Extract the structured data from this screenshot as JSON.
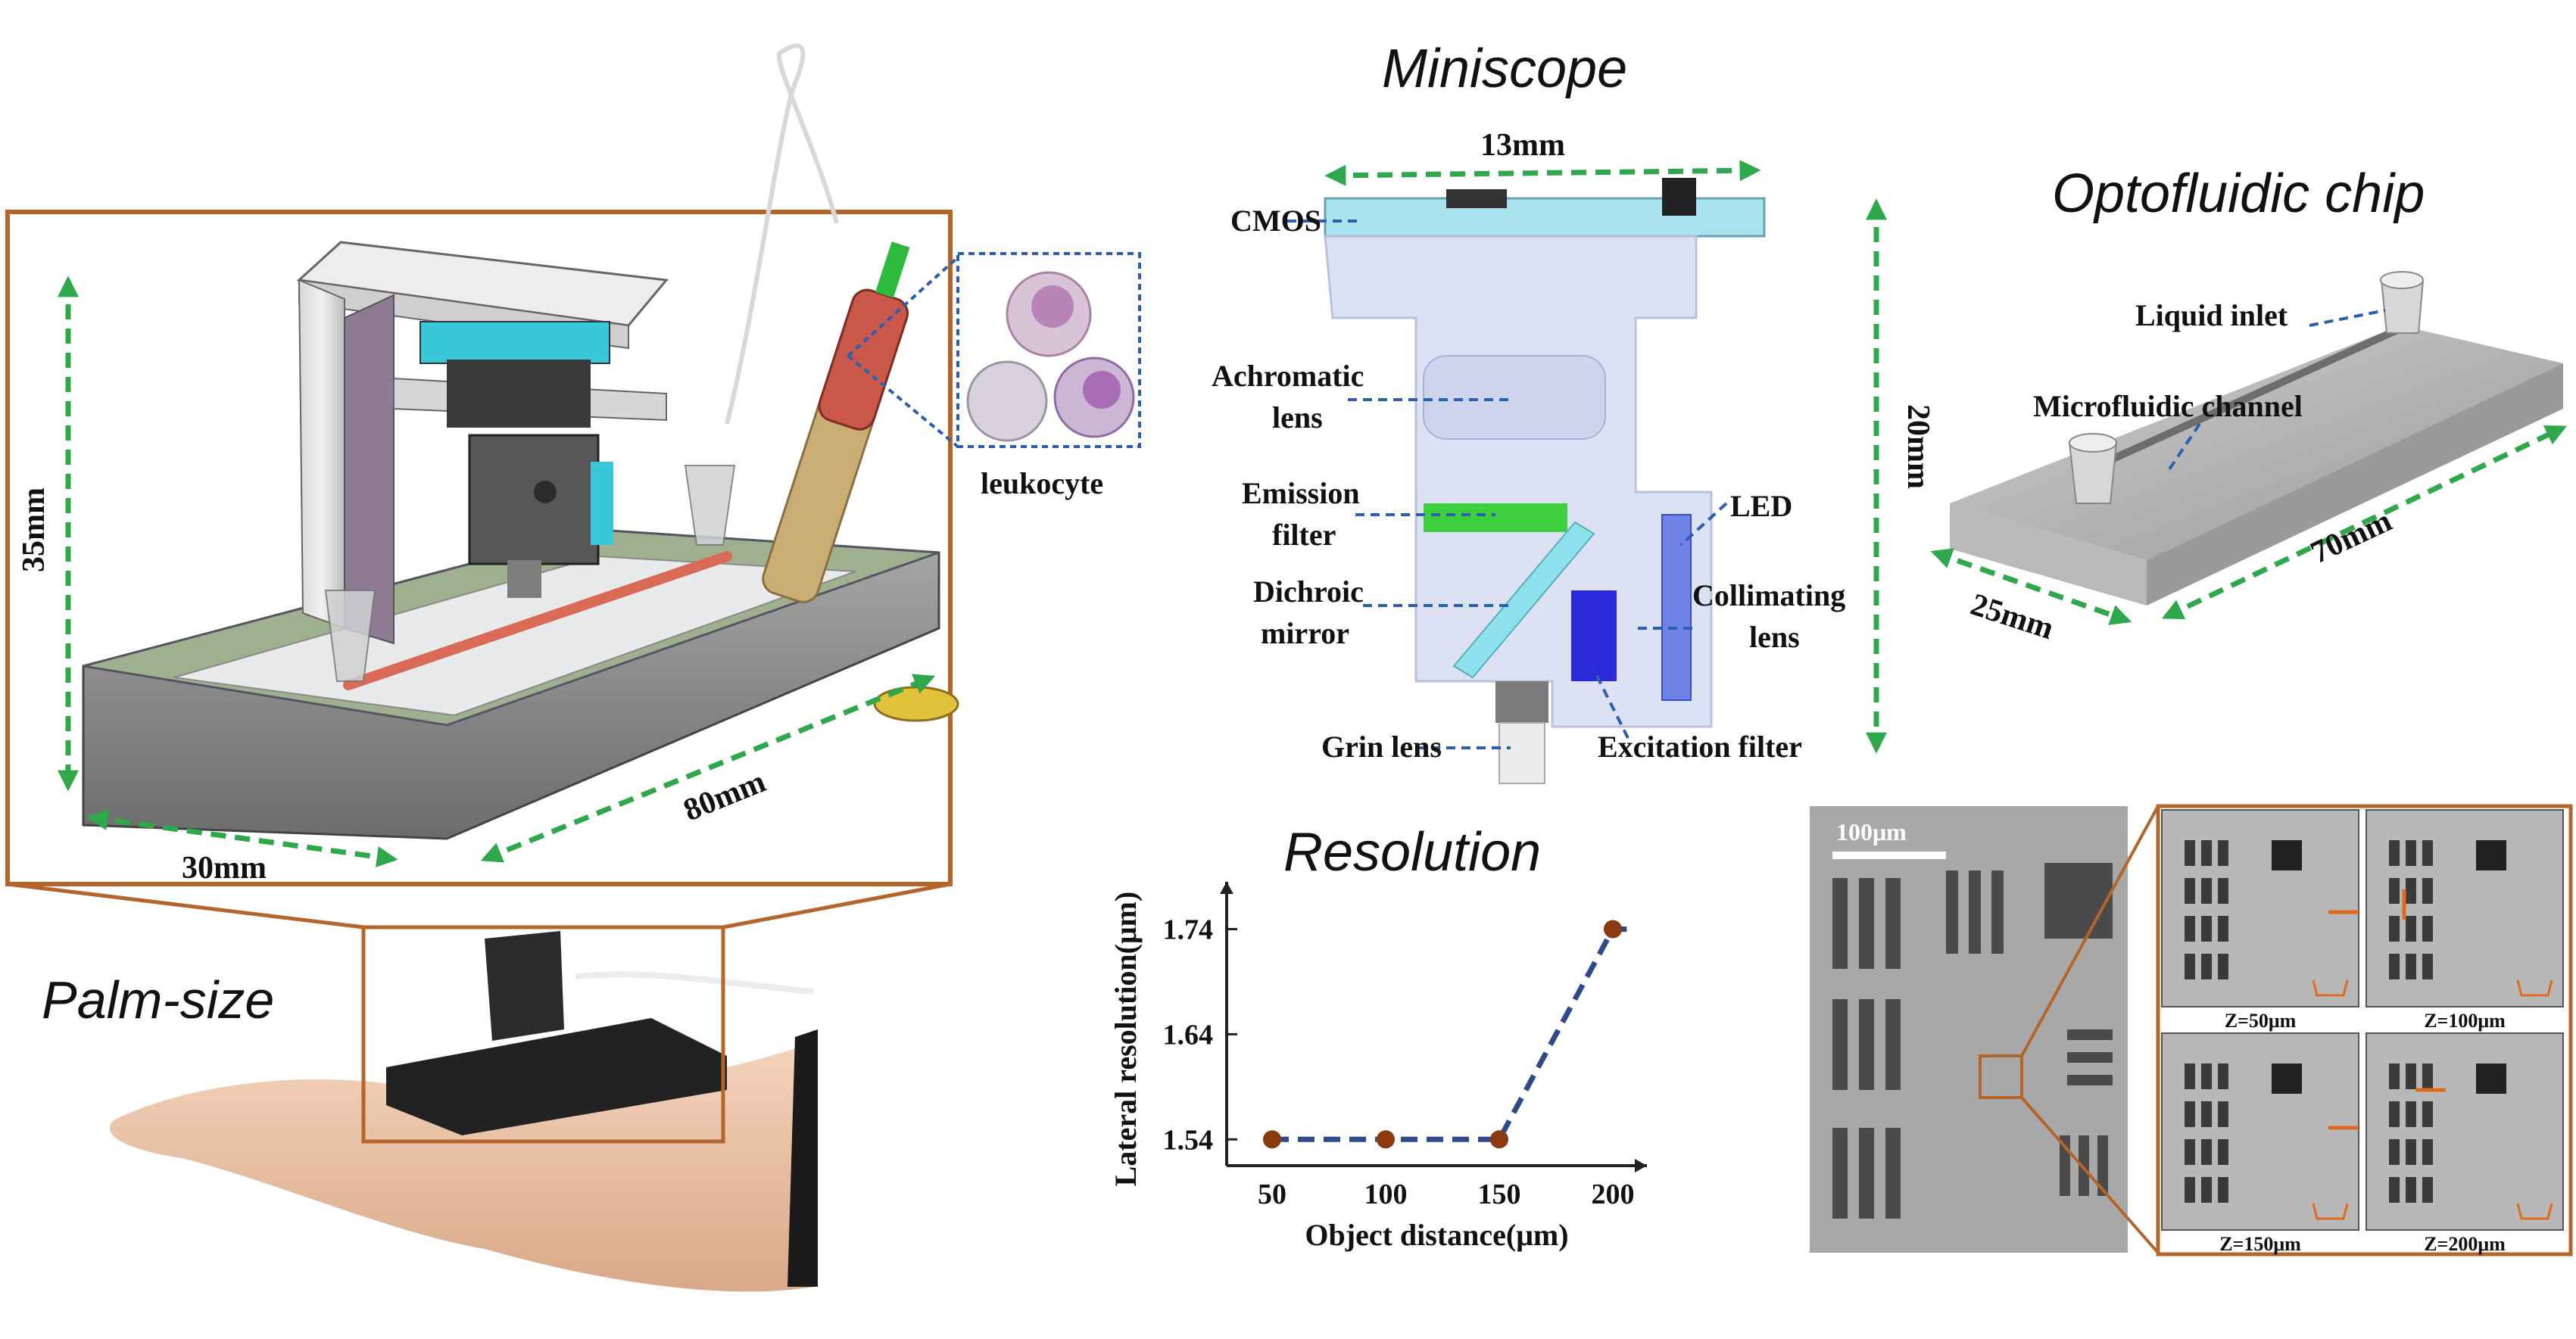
{
  "titles": {
    "miniscope": "Miniscope",
    "chip": "Optofluidic chip",
    "palm": "Palm-size",
    "resolution": "Resolution"
  },
  "device": {
    "height": "35mm",
    "width": "30mm",
    "length": "80mm",
    "cells": "leukocyte"
  },
  "miniscope": {
    "top_width": "13mm",
    "height": "20mm",
    "labels": {
      "cmos": "CMOS",
      "achromatic_1": "Achromatic",
      "achromatic_2": "lens",
      "emission_1": "Emission",
      "emission_2": "filter",
      "dichroic_1": "Dichroic",
      "dichroic_2": "mirror",
      "grin": "Grin lens",
      "led": "LED",
      "collimating_1": "Collimating",
      "collimating_2": "lens",
      "excitation": "Excitation filter"
    }
  },
  "chip": {
    "inlet": "Liquid inlet",
    "channel": "Microfluidic channel",
    "width": "25mm",
    "length": "70mm"
  },
  "chart_data": {
    "type": "line",
    "title": "",
    "xlabel": "Object distance(μm)",
    "ylabel": "Lateral resolution(μm)",
    "x": [
      50,
      100,
      150,
      200
    ],
    "series": [
      {
        "values": [
          1.54,
          1.54,
          1.54,
          1.74
        ]
      }
    ],
    "x_ticks": [
      "50",
      "100",
      "150",
      "200"
    ],
    "y_ticks": [
      "1.54",
      "1.64",
      "1.74"
    ],
    "xlim": [
      30,
      215
    ],
    "ylim": [
      1.515,
      1.785
    ],
    "grid": false,
    "colors": {
      "line": "#2d4a8a",
      "marker": "#8b3a10"
    }
  },
  "microscopy": {
    "scale_bar": "100μm",
    "z_labels": [
      "Z=50μm",
      "Z=100μm",
      "Z=150μm",
      "Z=200μm"
    ]
  },
  "colors": {
    "arrow": "#2ea84a",
    "frame": "#b5642a",
    "leader": "#2b5fb0"
  }
}
